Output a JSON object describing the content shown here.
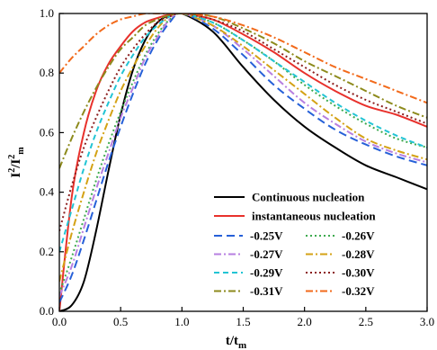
{
  "chart_data": {
    "type": "line",
    "xlim": [
      0.0,
      3.0
    ],
    "ylim": [
      0.0,
      1.0
    ],
    "xticks": [
      "0.0",
      "0.5",
      "1.0",
      "1.5",
      "2.0",
      "2.5",
      "3.0"
    ],
    "yticks": [
      "0.0",
      "0.2",
      "0.4",
      "0.6",
      "0.8",
      "1.0"
    ],
    "grid": false,
    "legend_position": "bottom-right",
    "x": [
      0,
      0.1,
      0.2,
      0.3,
      0.4,
      0.5,
      0.6,
      0.7,
      0.8,
      0.9,
      1.0,
      1.25,
      1.5,
      1.75,
      2.0,
      2.25,
      2.5,
      2.75,
      3.0
    ],
    "series": [
      {
        "name": "Continuous nucleation",
        "color": "#000000",
        "dash": "solid",
        "values": [
          0.0,
          0.02,
          0.1,
          0.27,
          0.47,
          0.66,
          0.81,
          0.91,
          0.97,
          0.995,
          1.0,
          0.94,
          0.82,
          0.71,
          0.62,
          0.55,
          0.49,
          0.45,
          0.41
        ]
      },
      {
        "name": "instantaneous nucleation",
        "color": "#e8312c",
        "dash": "solid",
        "values": [
          0.0,
          0.38,
          0.6,
          0.74,
          0.83,
          0.89,
          0.94,
          0.97,
          0.985,
          0.997,
          1.0,
          0.98,
          0.93,
          0.87,
          0.8,
          0.74,
          0.69,
          0.66,
          0.62
        ]
      },
      {
        "name": "-0.25V",
        "color": "#2660d8",
        "dash": "long-dash",
        "values": [
          0.03,
          0.12,
          0.24,
          0.37,
          0.5,
          0.62,
          0.73,
          0.83,
          0.91,
          0.97,
          1.0,
          0.95,
          0.86,
          0.76,
          0.68,
          0.61,
          0.56,
          0.52,
          0.49
        ]
      },
      {
        "name": "-0.26V",
        "color": "#3daa4e",
        "dash": "dot",
        "values": [
          0.06,
          0.18,
          0.31,
          0.44,
          0.56,
          0.67,
          0.77,
          0.86,
          0.93,
          0.98,
          1.0,
          0.97,
          0.91,
          0.84,
          0.76,
          0.69,
          0.63,
          0.58,
          0.55
        ]
      },
      {
        "name": "-0.27V",
        "color": "#b77fe0",
        "dash": "dash-dot",
        "values": [
          0.05,
          0.15,
          0.28,
          0.41,
          0.53,
          0.65,
          0.75,
          0.85,
          0.92,
          0.98,
          1.0,
          0.96,
          0.88,
          0.79,
          0.7,
          0.63,
          0.57,
          0.53,
          0.5
        ]
      },
      {
        "name": "-0.28V",
        "color": "#d4a215",
        "dash": "dash-dot",
        "values": [
          0.1,
          0.26,
          0.4,
          0.53,
          0.64,
          0.74,
          0.82,
          0.89,
          0.95,
          0.99,
          1.0,
          0.96,
          0.89,
          0.81,
          0.73,
          0.65,
          0.58,
          0.54,
          0.51
        ]
      },
      {
        "name": "-0.29V",
        "color": "#22c4d4",
        "dash": "dash",
        "values": [
          0.2,
          0.34,
          0.48,
          0.6,
          0.7,
          0.79,
          0.86,
          0.92,
          0.96,
          0.99,
          1.0,
          0.97,
          0.91,
          0.84,
          0.77,
          0.7,
          0.64,
          0.59,
          0.55
        ]
      },
      {
        "name": "-0.30V",
        "color": "#8b1e1e",
        "dash": "dot",
        "values": [
          0.27,
          0.42,
          0.55,
          0.65,
          0.74,
          0.82,
          0.88,
          0.93,
          0.97,
          0.99,
          1.0,
          0.98,
          0.94,
          0.88,
          0.82,
          0.76,
          0.71,
          0.67,
          0.63
        ]
      },
      {
        "name": "-0.31V",
        "color": "#8d8a1c",
        "dash": "dash-dot",
        "values": [
          0.48,
          0.58,
          0.67,
          0.75,
          0.82,
          0.88,
          0.92,
          0.96,
          0.98,
          0.995,
          1.0,
          0.99,
          0.95,
          0.9,
          0.84,
          0.79,
          0.74,
          0.69,
          0.65
        ]
      },
      {
        "name": "-0.32V",
        "color": "#f26a1b",
        "dash": "dash-dot",
        "values": [
          0.8,
          0.85,
          0.89,
          0.93,
          0.96,
          0.98,
          0.99,
          1.0,
          1.0,
          1.0,
          1.0,
          0.99,
          0.96,
          0.92,
          0.87,
          0.82,
          0.78,
          0.74,
          0.7
        ]
      }
    ]
  }
}
